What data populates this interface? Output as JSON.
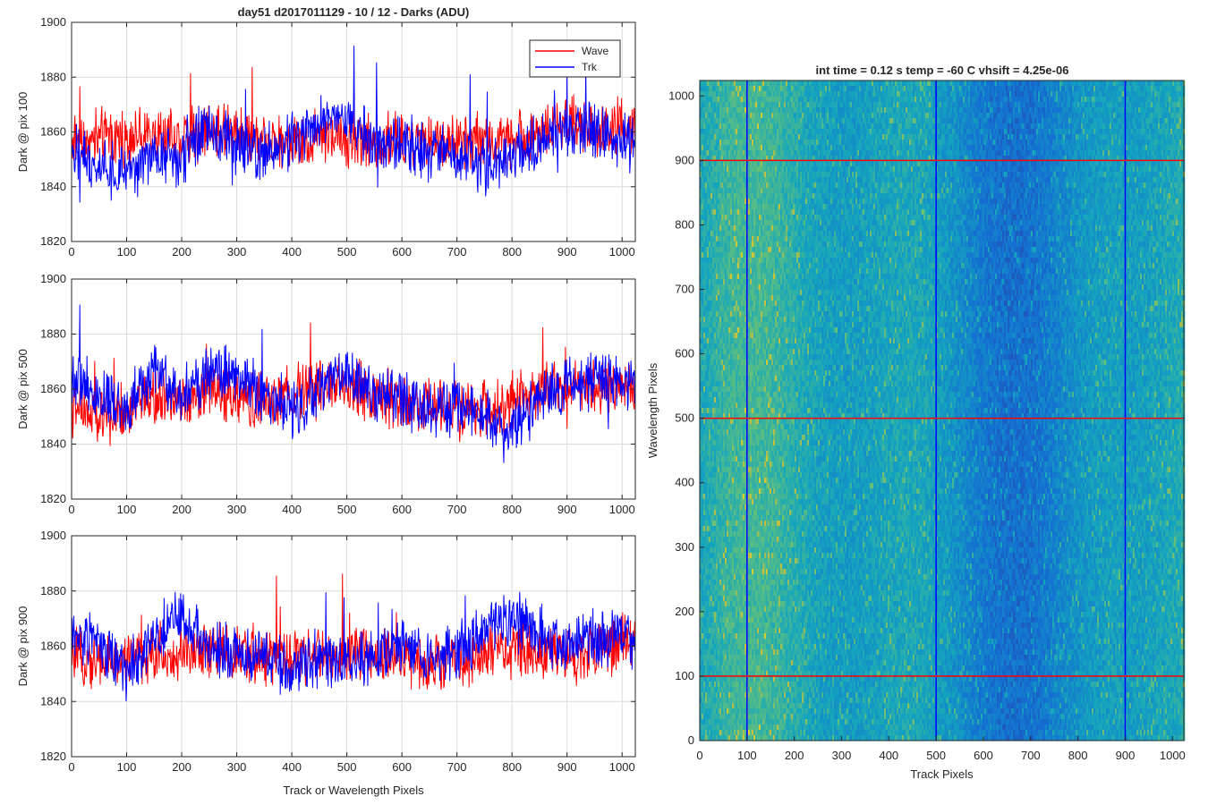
{
  "figure": {
    "left_title": "day51 d2017011129 - 10 / 12 - Darks (ADU)",
    "right_title": "int time = 0.12 s    temp = -60 C    vhsift = 4.25e-06"
  },
  "chart_data": [
    {
      "type": "line",
      "panel": "top-left",
      "ylabel": "Dark @ pix 100",
      "xlabel": "",
      "xlim": [
        0,
        1024
      ],
      "ylim": [
        1820,
        1900
      ],
      "xticks": [
        0,
        100,
        200,
        300,
        400,
        500,
        600,
        700,
        800,
        900,
        1000
      ],
      "yticks": [
        1820,
        1840,
        1860,
        1880,
        1900
      ],
      "grid": true,
      "legend": "top-right",
      "series": [
        {
          "name": "Wave",
          "color": "#ff0000",
          "x": [
            0,
            50,
            100,
            150,
            200,
            250,
            300,
            350,
            400,
            450,
            500,
            550,
            600,
            650,
            700,
            750,
            800,
            850,
            900,
            950,
            1000,
            1024
          ],
          "values": [
            1857,
            1858,
            1858,
            1859,
            1858,
            1860,
            1860,
            1858,
            1857,
            1859,
            1857,
            1857,
            1858,
            1856,
            1857,
            1856,
            1858,
            1860,
            1863,
            1862,
            1862,
            1861
          ]
        },
        {
          "name": "Trk",
          "color": "#0000ff",
          "x": [
            0,
            50,
            100,
            150,
            200,
            250,
            300,
            350,
            400,
            450,
            500,
            550,
            600,
            650,
            700,
            750,
            800,
            850,
            900,
            950,
            1000,
            1024
          ],
          "values": [
            1853,
            1848,
            1843,
            1852,
            1851,
            1864,
            1855,
            1852,
            1857,
            1862,
            1866,
            1855,
            1856,
            1853,
            1852,
            1848,
            1851,
            1856,
            1860,
            1860,
            1857,
            1855
          ]
        }
      ]
    },
    {
      "type": "line",
      "panel": "middle-left",
      "ylabel": "Dark @ pix 500",
      "xlabel": "",
      "xlim": [
        0,
        1024
      ],
      "ylim": [
        1820,
        1900
      ],
      "xticks": [
        0,
        100,
        200,
        300,
        400,
        500,
        600,
        700,
        800,
        900,
        1000
      ],
      "yticks": [
        1820,
        1840,
        1860,
        1880,
        1900
      ],
      "grid": true,
      "series": [
        {
          "name": "Wave",
          "color": "#ff0000",
          "x": [
            0,
            50,
            100,
            150,
            200,
            250,
            300,
            350,
            400,
            450,
            500,
            550,
            600,
            650,
            700,
            750,
            800,
            850,
            900,
            950,
            1000,
            1024
          ],
          "values": [
            1853,
            1849,
            1852,
            1857,
            1855,
            1860,
            1857,
            1855,
            1858,
            1860,
            1862,
            1858,
            1855,
            1853,
            1852,
            1853,
            1855,
            1860,
            1863,
            1861,
            1862,
            1861
          ]
        },
        {
          "name": "Trk",
          "color": "#0000ff",
          "x": [
            0,
            50,
            100,
            150,
            200,
            250,
            300,
            350,
            400,
            450,
            500,
            550,
            600,
            650,
            700,
            750,
            800,
            850,
            900,
            950,
            1000,
            1024
          ],
          "values": [
            1865,
            1858,
            1852,
            1867,
            1858,
            1866,
            1866,
            1857,
            1853,
            1860,
            1868,
            1857,
            1857,
            1853,
            1853,
            1850,
            1845,
            1855,
            1862,
            1863,
            1864,
            1862
          ]
        }
      ]
    },
    {
      "type": "line",
      "panel": "bottom-left",
      "ylabel": "Dark @ pix 900",
      "xlabel": "Track or Wavelength Pixels",
      "xlim": [
        0,
        1024
      ],
      "ylim": [
        1820,
        1900
      ],
      "xticks": [
        0,
        100,
        200,
        300,
        400,
        500,
        600,
        700,
        800,
        900,
        1000
      ],
      "yticks": [
        1820,
        1840,
        1860,
        1880,
        1900
      ],
      "grid": true,
      "series": [
        {
          "name": "Wave",
          "color": "#ff0000",
          "x": [
            0,
            50,
            100,
            150,
            200,
            250,
            300,
            350,
            400,
            450,
            500,
            550,
            600,
            650,
            700,
            750,
            800,
            850,
            900,
            950,
            1000,
            1024
          ],
          "values": [
            1856,
            1855,
            1855,
            1856,
            1858,
            1858,
            1857,
            1857,
            1856,
            1856,
            1857,
            1856,
            1856,
            1855,
            1855,
            1857,
            1858,
            1857,
            1857,
            1858,
            1862,
            1860
          ]
        },
        {
          "name": "Trk",
          "color": "#0000ff",
          "x": [
            0,
            50,
            100,
            150,
            200,
            250,
            300,
            350,
            400,
            450,
            500,
            550,
            600,
            650,
            700,
            750,
            800,
            850,
            900,
            950,
            1000,
            1024
          ],
          "values": [
            1865,
            1860,
            1850,
            1863,
            1872,
            1860,
            1858,
            1856,
            1850,
            1856,
            1853,
            1855,
            1860,
            1855,
            1858,
            1865,
            1870,
            1865,
            1860,
            1863,
            1864,
            1864
          ]
        }
      ]
    },
    {
      "type": "heatmap",
      "panel": "right",
      "xlabel": "Track Pixels",
      "ylabel": "Wavelength Pixels",
      "xlim": [
        0,
        1024
      ],
      "ylim": [
        0,
        1024
      ],
      "xticks": [
        0,
        100,
        200,
        300,
        400,
        500,
        600,
        700,
        800,
        900,
        1000
      ],
      "yticks": [
        0,
        100,
        200,
        300,
        400,
        500,
        600,
        700,
        800,
        900,
        1000
      ],
      "colormap": "parula",
      "markers": {
        "vertical": {
          "color": "#0000ff",
          "x": [
            100,
            500,
            900
          ]
        },
        "horizontal": {
          "color": "#ff0000",
          "y": [
            100,
            500,
            900
          ]
        }
      }
    }
  ]
}
